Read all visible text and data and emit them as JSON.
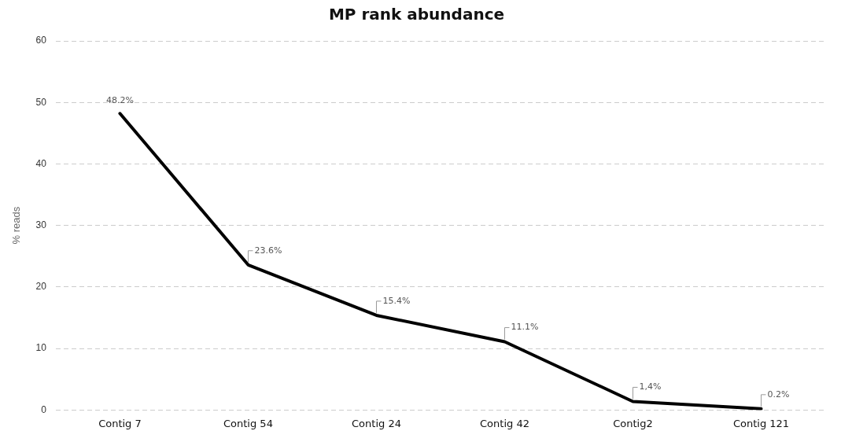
{
  "chart_data": {
    "type": "line",
    "title": "MP rank abundance",
    "ylabel": "% reads",
    "categories": [
      "Contig 7",
      "Contig 54",
      "Contig 24",
      "Contig 42",
      "Contig2",
      "Contig 121"
    ],
    "series": [
      {
        "color": "#000000",
        "values": [
          48.2,
          23.6,
          15.4,
          11.1,
          1.4,
          0.2
        ],
        "value_labels": [
          "48.2%",
          "23.6%",
          "15.4%",
          "11.1%",
          "1,4%",
          "0.2%"
        ]
      }
    ],
    "ylim": [
      0,
      60
    ],
    "yticks": [
      0,
      10,
      20,
      30,
      40,
      50,
      60
    ],
    "grid": "y",
    "legend": false,
    "marker": "none",
    "line_style": "solid"
  }
}
